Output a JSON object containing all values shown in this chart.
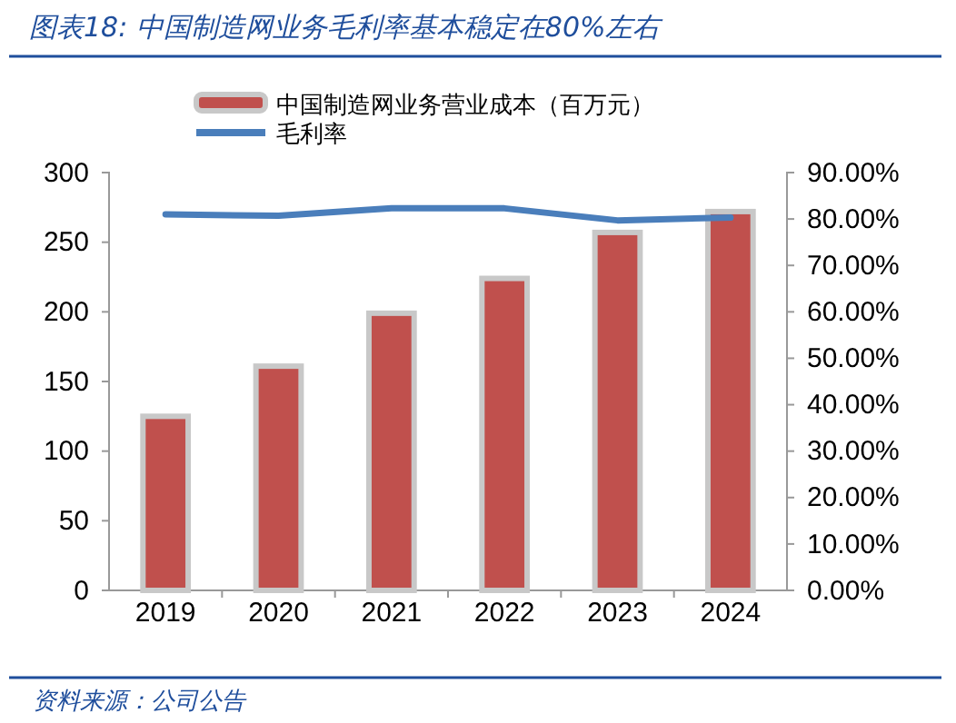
{
  "chart_data": {
    "type": "bar",
    "title": "图表18:  中国制造网业务毛利率基本稳定在80%左右",
    "categories": [
      "2019",
      "2020",
      "2021",
      "2022",
      "2023",
      "2024"
    ],
    "series": [
      {
        "name": "中国制造网业务营业成本（百万元）",
        "color": "#c0504d",
        "values": [
          125,
          161,
          199,
          224,
          257,
          272
        ]
      },
      {
        "name": "毛利率",
        "type": "line",
        "axis": "y2",
        "color": "#4a7ebb",
        "values": [
          81.0,
          80.7,
          82.3,
          82.3,
          79.7,
          80.3
        ]
      }
    ],
    "ylim": [
      0,
      300
    ],
    "yticks": [
      0,
      50,
      100,
      150,
      200,
      250,
      300
    ],
    "y2lim": [
      0,
      90
    ],
    "y2ticks": [
      {
        "value": 0,
        "label": "0.00%"
      },
      {
        "value": 10,
        "label": "10.00%"
      },
      {
        "value": 20,
        "label": "20.00%"
      },
      {
        "value": 30,
        "label": "30.00%"
      },
      {
        "value": 40,
        "label": "40.00%"
      },
      {
        "value": 50,
        "label": "50.00%"
      },
      {
        "value": 60,
        "label": "60.00%"
      },
      {
        "value": 70,
        "label": "70.00%"
      },
      {
        "value": 80,
        "label": "80.00%"
      },
      {
        "value": 90,
        "label": "90.00%"
      }
    ],
    "legend": "top",
    "grid": false,
    "marker": "none",
    "annotations": [
      "资料来源：公司公告"
    ]
  }
}
